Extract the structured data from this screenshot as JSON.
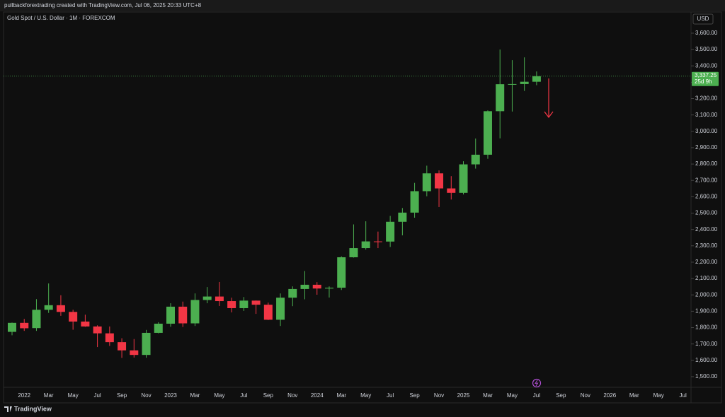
{
  "header": {
    "text": "pullbackforextrading created with TradingView.com, Jul 06, 2025 20:33 UTC+8"
  },
  "footer": {
    "brand": "TradingView"
  },
  "chart_data": {
    "type": "candlestick",
    "title": "Gold Spot / U.S. Dollar · 1M · FOREXCOM",
    "currency": "USD",
    "up_color": "#4caf50",
    "down_color": "#f23645",
    "categories": [
      null,
      "2022",
      null,
      "Mar",
      null,
      "May",
      null,
      "Jul",
      null,
      "Sep",
      null,
      "Nov",
      null,
      "2023",
      null,
      "Mar",
      null,
      "May",
      null,
      "Jul",
      null,
      "Sep",
      null,
      "Nov",
      null,
      "2024",
      null,
      "Mar",
      null,
      "May",
      null,
      "Jul",
      null,
      "Sep",
      null,
      "Nov",
      null,
      "2025",
      null,
      "Mar",
      null,
      "May",
      null,
      "Jul",
      null,
      "Sep",
      null,
      "Nov",
      null,
      "2026",
      null,
      "Mar",
      null,
      "May",
      null,
      "Jul"
    ],
    "open": [
      1774,
      1829,
      1797,
      1909,
      1937,
      1896,
      1837,
      1807,
      1765,
      1711,
      1661,
      1633,
      1768,
      1824,
      1928,
      1826,
      1969,
      1990,
      1962,
      1919,
      1965,
      1940,
      1848,
      1983,
      2036,
      2062,
      2039,
      2044,
      2230,
      2286,
      2327,
      2326,
      2447,
      2503,
      2634,
      2743,
      2651,
      2624,
      2798,
      2857,
      3123,
      3288,
      3289,
      3303,
      null,
      null,
      null,
      null,
      null,
      null,
      null,
      null,
      null,
      null,
      null,
      null
    ],
    "high": [
      1831,
      1853,
      1974,
      2070,
      1998,
      1909,
      1879,
      1814,
      1807,
      1735,
      1730,
      1786,
      1833,
      1949,
      1959,
      2009,
      2048,
      2079,
      1983,
      1987,
      1966,
      1953,
      2009,
      2052,
      2146,
      2078,
      2052,
      2236,
      2431,
      2450,
      2387,
      2483,
      2531,
      2685,
      2790,
      2761,
      2726,
      2817,
      2956,
      3128,
      3500,
      3435,
      3452,
      3366,
      null,
      null,
      null,
      null,
      null,
      null,
      null,
      null,
      null,
      null,
      null,
      null
    ],
    "low": [
      1753,
      1780,
      1780,
      1890,
      1872,
      1787,
      1805,
      1681,
      1688,
      1615,
      1617,
      1616,
      1765,
      1805,
      1804,
      1810,
      1949,
      1932,
      1893,
      1902,
      1884,
      1846,
      1810,
      1931,
      1973,
      2001,
      1984,
      2030,
      2228,
      2277,
      2286,
      2293,
      2364,
      2472,
      2603,
      2537,
      2583,
      2614,
      2772,
      2832,
      2957,
      3121,
      3247,
      3282,
      null,
      null,
      null,
      null,
      null,
      null,
      null,
      null,
      null,
      null,
      null,
      null
    ],
    "close": [
      1829,
      1796,
      1909,
      1937,
      1896,
      1837,
      1807,
      1765,
      1711,
      1661,
      1633,
      1768,
      1824,
      1928,
      1826,
      1969,
      1990,
      1962,
      1919,
      1965,
      1940,
      1848,
      1983,
      2036,
      2062,
      2039,
      2044,
      2230,
      2286,
      2327,
      2326,
      2447,
      2503,
      2634,
      2743,
      2651,
      2624,
      2798,
      2857,
      3123,
      3288,
      3289,
      3303,
      3337,
      null,
      null,
      null,
      null,
      null,
      null,
      null,
      null,
      null,
      null,
      null,
      null
    ],
    "ylim": [
      1435,
      3725
    ],
    "yticks": [
      {
        "value": 1500,
        "label": "1,500.00"
      },
      {
        "value": 1600,
        "label": "1,600.00"
      },
      {
        "value": 1700,
        "label": "1,700.00"
      },
      {
        "value": 1800,
        "label": "1,800.00"
      },
      {
        "value": 1900,
        "label": "1,900.00"
      },
      {
        "value": 2000,
        "label": "2,000.00"
      },
      {
        "value": 2100,
        "label": "2,100.00"
      },
      {
        "value": 2200,
        "label": "2,200.00"
      },
      {
        "value": 2300,
        "label": "2,300.00"
      },
      {
        "value": 2400,
        "label": "2,400.00"
      },
      {
        "value": 2500,
        "label": "2,500.00"
      },
      {
        "value": 2600,
        "label": "2,600.00"
      },
      {
        "value": 2700,
        "label": "2,700.00"
      },
      {
        "value": 2800,
        "label": "2,800.00"
      },
      {
        "value": 2900,
        "label": "2,900.00"
      },
      {
        "value": 3000,
        "label": "3,000.00"
      },
      {
        "value": 3100,
        "label": "3,100.00"
      },
      {
        "value": 3200,
        "label": "3,200.00"
      },
      {
        "value": 3300,
        "label": "3,300.00"
      },
      {
        "value": 3400,
        "label": "3,400.00"
      },
      {
        "value": 3500,
        "label": "3,500.00"
      },
      {
        "value": 3600,
        "label": "3,600.00"
      }
    ],
    "last_price": {
      "value": 3337.25,
      "label": "3,337.25"
    },
    "countdown": "25d 9h"
  }
}
